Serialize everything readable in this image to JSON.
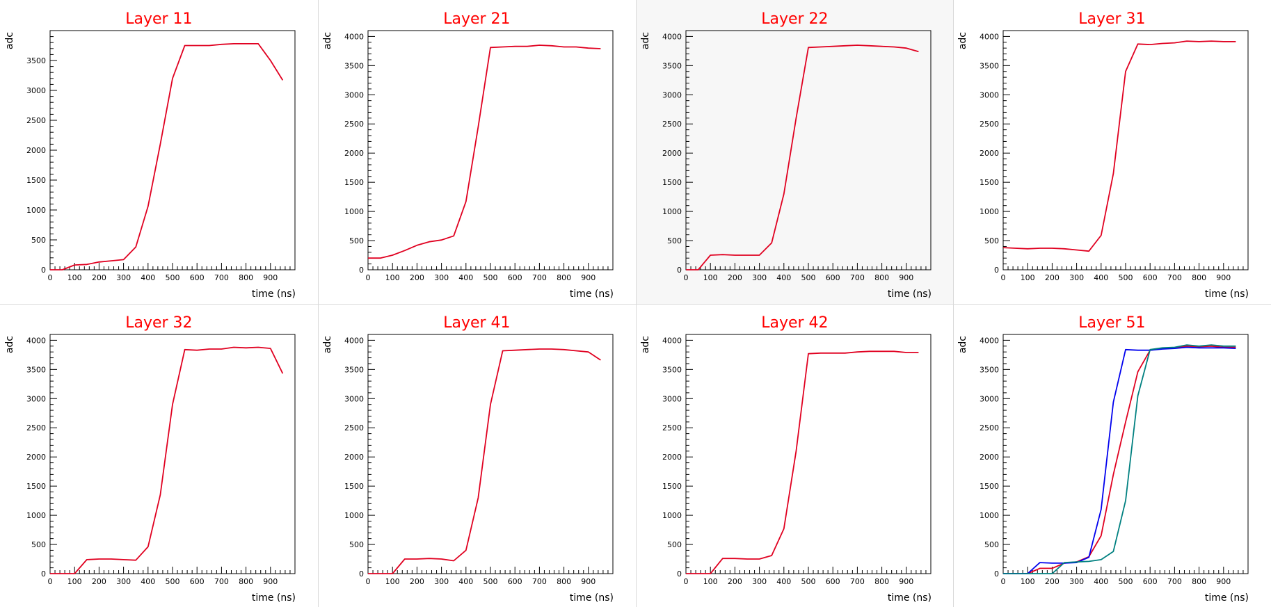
{
  "chart_data": [
    {
      "type": "line",
      "title": "Layer 11",
      "xlabel": "time (ns)",
      "ylabel": "adc",
      "xlim": [
        0,
        1000
      ],
      "ylim": [
        0,
        4000
      ],
      "yticks": [
        0,
        500,
        1000,
        1500,
        2000,
        2500,
        3000,
        3500
      ],
      "xticks": [
        0,
        100,
        200,
        300,
        400,
        500,
        600,
        700,
        800,
        900
      ],
      "series": [
        {
          "color": "#e00020",
          "x": [
            0,
            50,
            100,
            150,
            200,
            250,
            300,
            350,
            400,
            450,
            500,
            550,
            600,
            650,
            700,
            750,
            800,
            850,
            900,
            950
          ],
          "y": [
            0,
            0,
            80,
            90,
            130,
            150,
            170,
            380,
            1060,
            2100,
            3200,
            3750,
            3750,
            3750,
            3770,
            3780,
            3780,
            3780,
            3500,
            3170
          ]
        }
      ]
    },
    {
      "type": "line",
      "title": "Layer 21",
      "xlabel": "time (ns)",
      "ylabel": "adc",
      "xlim": [
        0,
        1000
      ],
      "ylim": [
        0,
        4100
      ],
      "yticks": [
        0,
        500,
        1000,
        1500,
        2000,
        2500,
        3000,
        3500,
        4000
      ],
      "xticks": [
        0,
        100,
        200,
        300,
        400,
        500,
        600,
        700,
        800,
        900
      ],
      "series": [
        {
          "color": "#e00020",
          "x": [
            0,
            50,
            100,
            150,
            200,
            250,
            300,
            350,
            400,
            450,
            500,
            550,
            600,
            650,
            700,
            750,
            800,
            850,
            900,
            950
          ],
          "y": [
            200,
            200,
            250,
            330,
            420,
            480,
            510,
            580,
            1170,
            2450,
            3810,
            3820,
            3830,
            3830,
            3850,
            3840,
            3820,
            3820,
            3800,
            3790
          ]
        }
      ]
    },
    {
      "type": "line",
      "title": "Layer 22",
      "xlabel": "time (ns)",
      "ylabel": "adc",
      "xlim": [
        0,
        1000
      ],
      "ylim": [
        0,
        4100
      ],
      "yticks": [
        0,
        500,
        1000,
        1500,
        2000,
        2500,
        3000,
        3500,
        4000
      ],
      "xticks": [
        0,
        100,
        200,
        300,
        400,
        500,
        600,
        700,
        800,
        900
      ],
      "series": [
        {
          "color": "#e00020",
          "x": [
            0,
            50,
            100,
            150,
            200,
            250,
            300,
            350,
            400,
            450,
            500,
            550,
            600,
            650,
            700,
            750,
            800,
            850,
            900,
            950
          ],
          "y": [
            0,
            0,
            250,
            260,
            250,
            250,
            250,
            460,
            1300,
            2600,
            3810,
            3820,
            3830,
            3840,
            3850,
            3840,
            3830,
            3820,
            3800,
            3740
          ]
        }
      ]
    },
    {
      "type": "line",
      "title": "Layer 31",
      "xlabel": "time (ns)",
      "ylabel": "adc",
      "xlim": [
        0,
        1000
      ],
      "ylim": [
        0,
        4100
      ],
      "yticks": [
        0,
        500,
        1000,
        1500,
        2000,
        2500,
        3000,
        3500,
        4000
      ],
      "xticks": [
        0,
        100,
        200,
        300,
        400,
        500,
        600,
        700,
        800,
        900
      ],
      "series": [
        {
          "color": "#e00020",
          "x": [
            0,
            50,
            100,
            150,
            200,
            250,
            300,
            350,
            400,
            450,
            500,
            550,
            600,
            650,
            700,
            750,
            800,
            850,
            900,
            950
          ],
          "y": [
            380,
            370,
            360,
            370,
            370,
            360,
            340,
            320,
            590,
            1650,
            3400,
            3870,
            3860,
            3880,
            3890,
            3920,
            3910,
            3920,
            3910,
            3910
          ]
        }
      ]
    },
    {
      "type": "line",
      "title": "Layer 32",
      "xlabel": "time (ns)",
      "ylabel": "adc",
      "xlim": [
        0,
        1000
      ],
      "ylim": [
        0,
        4100
      ],
      "yticks": [
        0,
        500,
        1000,
        1500,
        2000,
        2500,
        3000,
        3500,
        4000
      ],
      "xticks": [
        0,
        100,
        200,
        300,
        400,
        500,
        600,
        700,
        800,
        900
      ],
      "series": [
        {
          "color": "#e00020",
          "x": [
            0,
            50,
            100,
            150,
            200,
            250,
            300,
            350,
            400,
            450,
            500,
            550,
            600,
            650,
            700,
            750,
            800,
            850,
            900,
            950
          ],
          "y": [
            0,
            0,
            0,
            240,
            250,
            250,
            240,
            230,
            460,
            1350,
            2900,
            3840,
            3830,
            3850,
            3850,
            3880,
            3870,
            3880,
            3860,
            3430
          ]
        }
      ]
    },
    {
      "type": "line",
      "title": "Layer 41",
      "xlabel": "time (ns)",
      "ylabel": "adc",
      "xlim": [
        0,
        1000
      ],
      "ylim": [
        0,
        4100
      ],
      "yticks": [
        0,
        500,
        1000,
        1500,
        2000,
        2500,
        3000,
        3500,
        4000
      ],
      "xticks": [
        0,
        100,
        200,
        300,
        400,
        500,
        600,
        700,
        800,
        900
      ],
      "series": [
        {
          "color": "#e00020",
          "x": [
            0,
            50,
            100,
            150,
            200,
            250,
            300,
            350,
            400,
            450,
            500,
            550,
            600,
            650,
            700,
            750,
            800,
            850,
            900,
            950
          ],
          "y": [
            0,
            0,
            0,
            250,
            250,
            260,
            250,
            220,
            400,
            1300,
            2900,
            3820,
            3830,
            3840,
            3850,
            3850,
            3840,
            3820,
            3800,
            3660
          ]
        }
      ]
    },
    {
      "type": "line",
      "title": "Layer 42",
      "xlabel": "time (ns)",
      "ylabel": "adc",
      "xlim": [
        0,
        1000
      ],
      "ylim": [
        0,
        4100
      ],
      "yticks": [
        0,
        500,
        1000,
        1500,
        2000,
        2500,
        3000,
        3500,
        4000
      ],
      "xticks": [
        0,
        100,
        200,
        300,
        400,
        500,
        600,
        700,
        800,
        900
      ],
      "series": [
        {
          "color": "#e00020",
          "x": [
            0,
            50,
            100,
            150,
            200,
            250,
            300,
            350,
            400,
            450,
            500,
            550,
            600,
            650,
            700,
            750,
            800,
            850,
            900,
            950
          ],
          "y": [
            0,
            0,
            0,
            260,
            260,
            250,
            250,
            310,
            770,
            2100,
            3770,
            3780,
            3780,
            3780,
            3800,
            3810,
            3810,
            3810,
            3790,
            3790
          ]
        }
      ]
    },
    {
      "type": "line",
      "title": "Layer 51",
      "xlabel": "time (ns)",
      "ylabel": "adc",
      "xlim": [
        0,
        1000
      ],
      "ylim": [
        0,
        4100
      ],
      "yticks": [
        0,
        500,
        1000,
        1500,
        2000,
        2500,
        3000,
        3500,
        4000
      ],
      "xticks": [
        0,
        100,
        200,
        300,
        400,
        500,
        600,
        700,
        800,
        900
      ],
      "series": [
        {
          "color": "#e00020",
          "x": [
            0,
            50,
            100,
            150,
            200,
            250,
            300,
            350,
            400,
            450,
            500,
            550,
            600,
            650,
            700,
            750,
            800,
            850,
            900,
            950
          ],
          "y": [
            0,
            0,
            0,
            90,
            90,
            180,
            200,
            290,
            650,
            1700,
            2600,
            3460,
            3830,
            3860,
            3870,
            3900,
            3890,
            3900,
            3880,
            3880
          ]
        },
        {
          "color": "#0000ee",
          "x": [
            0,
            50,
            100,
            150,
            200,
            250,
            300,
            350,
            400,
            450,
            500,
            550,
            600,
            650,
            700,
            750,
            800,
            850,
            900,
            950
          ],
          "y": [
            0,
            0,
            0,
            190,
            180,
            180,
            190,
            280,
            1100,
            2940,
            3840,
            3830,
            3830,
            3850,
            3860,
            3880,
            3870,
            3870,
            3870,
            3860
          ]
        },
        {
          "color": "#008080",
          "x": [
            0,
            50,
            100,
            150,
            200,
            250,
            300,
            350,
            400,
            450,
            500,
            550,
            600,
            650,
            700,
            750,
            800,
            850,
            900,
            950
          ],
          "y": [
            0,
            0,
            0,
            0,
            0,
            190,
            200,
            210,
            240,
            380,
            1250,
            3050,
            3840,
            3870,
            3880,
            3920,
            3900,
            3920,
            3900,
            3900
          ]
        }
      ]
    }
  ]
}
